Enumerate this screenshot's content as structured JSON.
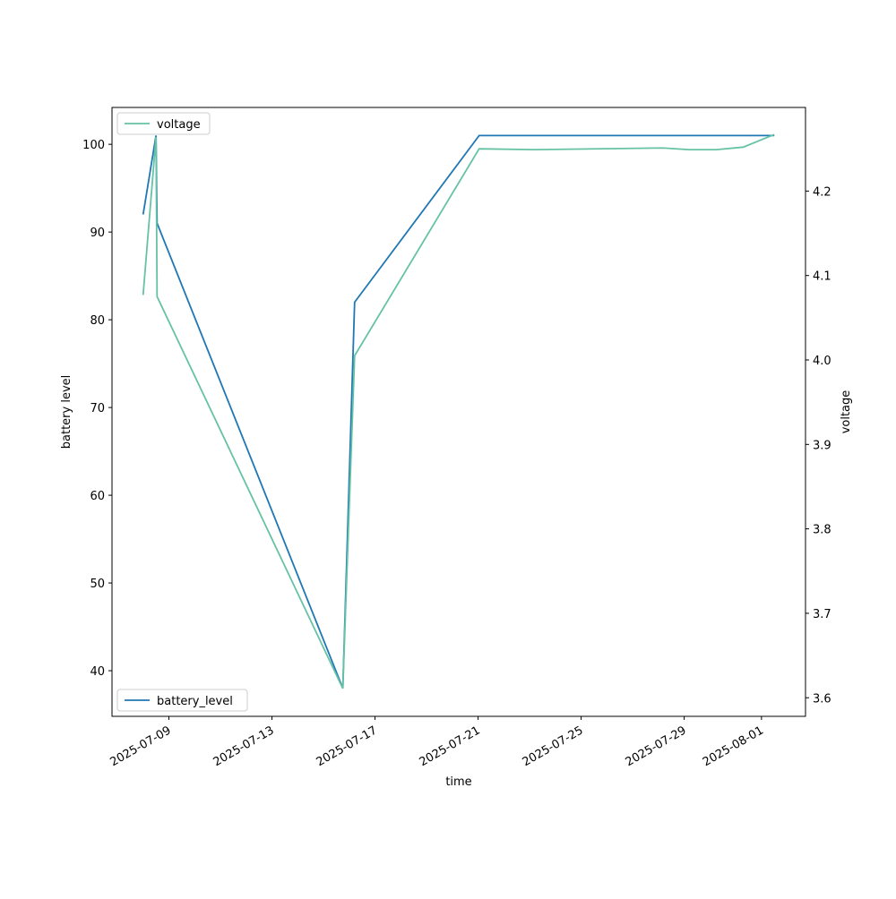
{
  "chart_data": {
    "type": "line",
    "xlabel": "time",
    "ylabel": "battery level",
    "y2label": "voltage",
    "xlim": [
      "2025-07-06T19:00",
      "2025-08-02T17:00"
    ],
    "xticks": [
      "2025-07-09",
      "2025-07-13",
      "2025-07-17",
      "2025-07-21",
      "2025-07-25",
      "2025-07-29",
      "2025-08-01"
    ],
    "ylim": [
      34.8,
      104.2
    ],
    "yticks": [
      40,
      50,
      60,
      70,
      80,
      90,
      100
    ],
    "y2lim": [
      3.578,
      4.299
    ],
    "y2ticks": [
      3.6,
      3.7,
      3.8,
      3.9,
      {
        "value": 4,
        "label": "4.0"
      },
      4.1,
      4.2
    ],
    "series": [
      {
        "name": "battery_level",
        "color": "#1f77b4",
        "legend": "lower left",
        "x": [
          "2025-07-08T00:00",
          "2025-07-08T12:00",
          "2025-07-08T13:00",
          "2025-07-15T18:00",
          "2025-07-16T05:00",
          "2025-07-21T01:00",
          "2025-08-01T12:00"
        ],
        "values": [
          92,
          101,
          91,
          38,
          82,
          101,
          101
        ]
      },
      {
        "name": "voltage",
        "color": "#66c2a5",
        "axis": "y2",
        "legend": "upper left",
        "x": [
          "2025-07-08T00:00",
          "2025-07-08T12:00",
          "2025-07-08T13:00",
          "2025-07-15T18:00",
          "2025-07-16T05:00",
          "2025-07-21T01:00",
          "2025-07-23T04:00",
          "2025-07-28T04:00",
          "2025-07-29T05:00",
          "2025-07-30T06:00",
          "2025-07-31T07:00",
          "2025-08-01T12:00"
        ],
        "values": [
          4.077,
          4.264,
          4.075,
          3.611,
          4.005,
          4.25,
          4.249,
          4.251,
          4.249,
          4.249,
          4.252,
          4.267
        ]
      }
    ]
  }
}
